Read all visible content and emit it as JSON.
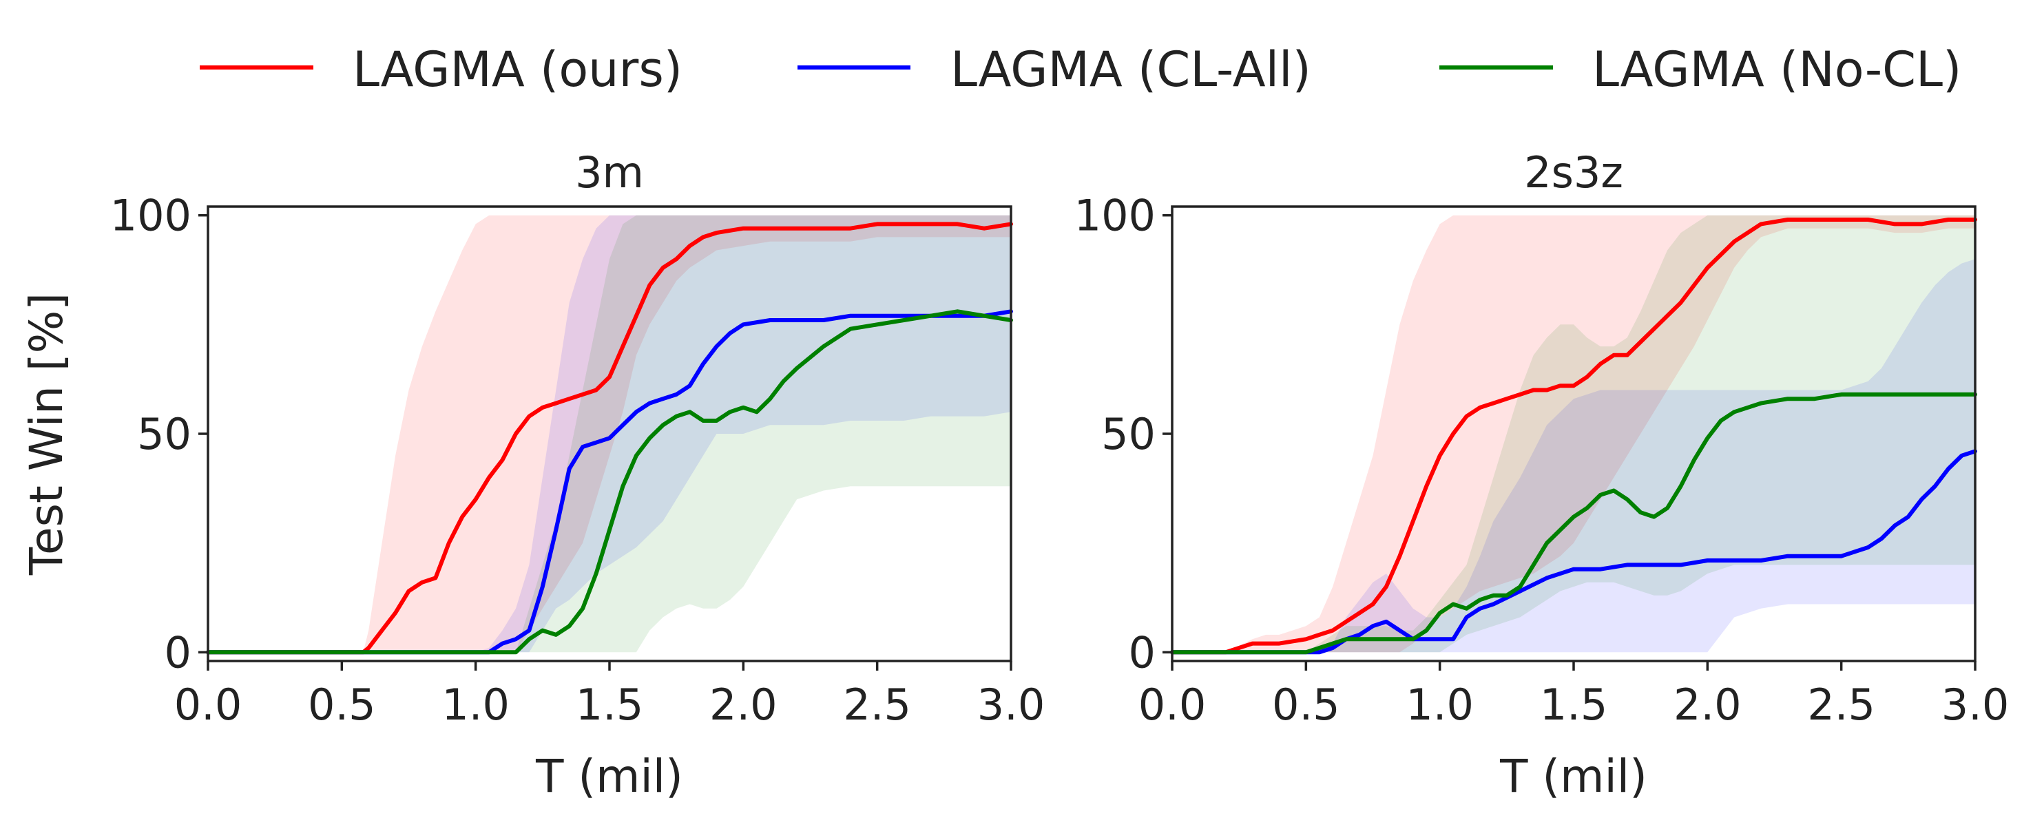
{
  "legend": [
    {
      "label": "LAGMA (ours)",
      "color": "#ff0000"
    },
    {
      "label": "LAGMA (CL-All)",
      "color": "#0000ff"
    },
    {
      "label": "LAGMA (No-CL)",
      "color": "#008000"
    }
  ],
  "chart_data": [
    {
      "type": "line",
      "title": "3m",
      "xlabel": "T (mil)",
      "ylabel": "Test Win [%]",
      "xlim": [
        0.0,
        3.0
      ],
      "ylim": [
        -2,
        102
      ],
      "xticks": [
        "0.0",
        "0.5",
        "1.0",
        "1.5",
        "2.0",
        "2.5",
        "3.0"
      ],
      "yticks": [
        "0",
        "50",
        "100"
      ],
      "grid": false,
      "series": [
        {
          "name": "LAGMA (ours)",
          "color": "#ff0000",
          "x": [
            0,
            0.3,
            0.58,
            0.6,
            0.65,
            0.7,
            0.75,
            0.8,
            0.85,
            0.9,
            0.95,
            1.0,
            1.05,
            1.1,
            1.15,
            1.2,
            1.25,
            1.3,
            1.35,
            1.4,
            1.45,
            1.5,
            1.55,
            1.6,
            1.65,
            1.7,
            1.75,
            1.8,
            1.85,
            1.9,
            2.0,
            2.1,
            2.2,
            2.3,
            2.4,
            2.5,
            2.6,
            2.7,
            2.8,
            2.9,
            3.0
          ],
          "y": [
            0,
            0,
            0,
            1,
            5,
            9,
            14,
            16,
            17,
            25,
            31,
            35,
            40,
            44,
            50,
            54,
            56,
            57,
            58,
            59,
            60,
            63,
            70,
            77,
            84,
            88,
            90,
            93,
            95,
            96,
            97,
            97,
            97,
            97,
            97,
            98,
            98,
            98,
            98,
            97,
            98
          ],
          "band_upper": [
            0,
            0,
            0,
            5,
            25,
            45,
            60,
            70,
            78,
            85,
            92,
            98,
            100,
            100,
            100,
            100,
            100,
            100,
            100,
            100,
            100,
            100,
            100,
            100,
            100,
            100,
            100,
            100,
            100,
            100,
            100,
            100,
            100,
            100,
            100,
            100,
            100,
            100,
            100,
            100,
            100
          ],
          "band_lower": [
            0,
            0,
            0,
            0,
            0,
            0,
            0,
            0,
            0,
            0,
            0,
            0,
            0,
            0,
            0,
            5,
            10,
            15,
            20,
            25,
            35,
            45,
            55,
            68,
            75,
            80,
            85,
            88,
            90,
            92,
            93,
            94,
            94,
            94,
            94,
            95,
            95,
            95,
            95,
            95,
            95
          ]
        },
        {
          "name": "LAGMA (CL-All)",
          "color": "#0000ff",
          "x": [
            0,
            0.5,
            1.0,
            1.05,
            1.1,
            1.15,
            1.2,
            1.25,
            1.3,
            1.35,
            1.4,
            1.45,
            1.5,
            1.55,
            1.6,
            1.65,
            1.7,
            1.75,
            1.8,
            1.85,
            1.9,
            1.95,
            2.0,
            2.1,
            2.2,
            2.3,
            2.4,
            2.5,
            2.6,
            2.7,
            2.8,
            2.9,
            3.0
          ],
          "y": [
            0,
            0,
            0,
            0,
            2,
            3,
            5,
            15,
            28,
            42,
            47,
            48,
            49,
            52,
            55,
            57,
            58,
            59,
            61,
            66,
            70,
            73,
            75,
            76,
            76,
            76,
            77,
            77,
            77,
            77,
            77,
            77,
            78
          ],
          "band_upper": [
            0,
            0,
            0,
            1,
            5,
            10,
            20,
            40,
            60,
            80,
            90,
            97,
            100,
            100,
            100,
            100,
            100,
            100,
            100,
            100,
            100,
            100,
            100,
            100,
            100,
            100,
            100,
            100,
            100,
            100,
            100,
            100,
            100
          ],
          "band_lower": [
            0,
            0,
            0,
            0,
            0,
            0,
            0,
            5,
            10,
            12,
            15,
            18,
            20,
            22,
            24,
            27,
            30,
            35,
            40,
            45,
            50,
            50,
            50,
            52,
            52,
            52,
            53,
            53,
            53,
            54,
            54,
            54,
            55
          ]
        },
        {
          "name": "LAGMA (No-CL)",
          "color": "#008000",
          "x": [
            0,
            0.5,
            1.0,
            1.15,
            1.2,
            1.25,
            1.3,
            1.35,
            1.4,
            1.45,
            1.5,
            1.55,
            1.6,
            1.65,
            1.7,
            1.75,
            1.8,
            1.85,
            1.9,
            1.95,
            2.0,
            2.05,
            2.1,
            2.15,
            2.2,
            2.3,
            2.4,
            2.5,
            2.6,
            2.7,
            2.8,
            2.9,
            3.0
          ],
          "y": [
            0,
            0,
            0,
            0,
            3,
            5,
            4,
            6,
            10,
            18,
            28,
            38,
            45,
            49,
            52,
            54,
            55,
            53,
            53,
            55,
            56,
            55,
            58,
            62,
            65,
            70,
            74,
            75,
            76,
            77,
            78,
            77,
            76
          ],
          "band_upper": [
            0,
            0,
            0,
            0,
            10,
            20,
            30,
            45,
            60,
            75,
            90,
            98,
            100,
            100,
            100,
            100,
            100,
            100,
            100,
            100,
            100,
            100,
            100,
            100,
            100,
            100,
            100,
            100,
            100,
            100,
            100,
            100,
            100
          ],
          "band_lower": [
            0,
            0,
            0,
            0,
            0,
            0,
            0,
            0,
            0,
            0,
            0,
            0,
            0,
            5,
            8,
            10,
            11,
            10,
            10,
            12,
            15,
            20,
            25,
            30,
            35,
            37,
            38,
            38,
            38,
            38,
            38,
            38,
            38
          ]
        }
      ]
    },
    {
      "type": "line",
      "title": "2s3z",
      "xlabel": "T (mil)",
      "ylabel": "",
      "xlim": [
        0.0,
        3.0
      ],
      "ylim": [
        -2,
        102
      ],
      "xticks": [
        "0.0",
        "0.5",
        "1.0",
        "1.5",
        "2.0",
        "2.5",
        "3.0"
      ],
      "yticks": [
        "0",
        "50",
        "100"
      ],
      "grid": false,
      "series": [
        {
          "name": "LAGMA (ours)",
          "color": "#ff0000",
          "x": [
            0,
            0.2,
            0.3,
            0.35,
            0.4,
            0.5,
            0.55,
            0.6,
            0.65,
            0.7,
            0.75,
            0.8,
            0.85,
            0.9,
            0.95,
            1.0,
            1.05,
            1.1,
            1.15,
            1.2,
            1.25,
            1.3,
            1.35,
            1.4,
            1.45,
            1.5,
            1.55,
            1.6,
            1.65,
            1.7,
            1.75,
            1.8,
            1.85,
            1.9,
            1.95,
            2.0,
            2.05,
            2.1,
            2.15,
            2.2,
            2.3,
            2.4,
            2.5,
            2.6,
            2.7,
            2.8,
            2.9,
            3.0
          ],
          "y": [
            0,
            0,
            2,
            2,
            2,
            3,
            4,
            5,
            7,
            9,
            11,
            15,
            22,
            30,
            38,
            45,
            50,
            54,
            56,
            57,
            58,
            59,
            60,
            60,
            61,
            61,
            63,
            66,
            68,
            68,
            71,
            74,
            77,
            80,
            84,
            88,
            91,
            94,
            96,
            98,
            99,
            99,
            99,
            99,
            98,
            98,
            99,
            99
          ],
          "band_upper": [
            0,
            0,
            3,
            4,
            4,
            6,
            8,
            15,
            25,
            35,
            45,
            60,
            75,
            85,
            92,
            98,
            100,
            100,
            100,
            100,
            100,
            100,
            100,
            100,
            100,
            100,
            100,
            100,
            100,
            100,
            100,
            100,
            100,
            100,
            100,
            100,
            100,
            100,
            100,
            100,
            100,
            100,
            100,
            100,
            100,
            100,
            100,
            100
          ],
          "band_lower": [
            0,
            0,
            0,
            0,
            0,
            0,
            0,
            0,
            0,
            0,
            0,
            0,
            0,
            2,
            5,
            8,
            10,
            12,
            14,
            15,
            16,
            17,
            18,
            20,
            22,
            25,
            30,
            35,
            40,
            45,
            50,
            55,
            60,
            65,
            70,
            76,
            82,
            88,
            92,
            95,
            97,
            97,
            97,
            97,
            96,
            96,
            97,
            97
          ]
        },
        {
          "name": "LAGMA (CL-All)",
          "color": "#0000ff",
          "x": [
            0,
            0.5,
            0.55,
            0.6,
            0.65,
            0.7,
            0.75,
            0.8,
            0.85,
            0.9,
            0.95,
            1.0,
            1.05,
            1.1,
            1.15,
            1.2,
            1.3,
            1.4,
            1.5,
            1.6,
            1.7,
            1.8,
            1.9,
            2.0,
            2.1,
            2.2,
            2.3,
            2.4,
            2.5,
            2.6,
            2.65,
            2.7,
            2.75,
            2.8,
            2.85,
            2.9,
            2.95,
            3.0
          ],
          "y": [
            0,
            0,
            0,
            1,
            3,
            4,
            6,
            7,
            5,
            3,
            3,
            3,
            3,
            8,
            10,
            11,
            14,
            17,
            19,
            19,
            20,
            20,
            20,
            21,
            21,
            21,
            22,
            22,
            22,
            24,
            26,
            29,
            31,
            35,
            38,
            42,
            45,
            46
          ],
          "band_upper": [
            0,
            0,
            0,
            2,
            8,
            12,
            16,
            18,
            14,
            10,
            8,
            8,
            10,
            15,
            22,
            30,
            40,
            52,
            58,
            60,
            60,
            60,
            60,
            60,
            60,
            60,
            60,
            60,
            60,
            62,
            65,
            70,
            75,
            80,
            84,
            87,
            89,
            90
          ],
          "band_lower": [
            0,
            0,
            0,
            0,
            0,
            0,
            0,
            0,
            0,
            0,
            0,
            0,
            0,
            0,
            0,
            0,
            0,
            0,
            0,
            0,
            0,
            0,
            0,
            0,
            8,
            10,
            11,
            11,
            11,
            11,
            11,
            11,
            11,
            11,
            11,
            11,
            11,
            11
          ]
        },
        {
          "name": "LAGMA (No-CL)",
          "color": "#008000",
          "x": [
            0,
            0.5,
            0.55,
            0.6,
            0.65,
            0.7,
            0.75,
            0.8,
            0.85,
            0.9,
            0.95,
            1.0,
            1.05,
            1.1,
            1.15,
            1.2,
            1.25,
            1.3,
            1.35,
            1.4,
            1.45,
            1.5,
            1.55,
            1.6,
            1.65,
            1.7,
            1.75,
            1.8,
            1.85,
            1.9,
            1.95,
            2.0,
            2.05,
            2.1,
            2.2,
            2.3,
            2.4,
            2.5,
            2.6,
            2.7,
            2.8,
            2.9,
            3.0
          ],
          "y": [
            0,
            0,
            1,
            2,
            3,
            3,
            3,
            3,
            3,
            3,
            5,
            9,
            11,
            10,
            12,
            13,
            13,
            15,
            20,
            25,
            28,
            31,
            33,
            36,
            37,
            35,
            32,
            31,
            33,
            38,
            44,
            49,
            53,
            55,
            57,
            58,
            58,
            59,
            59,
            59,
            59,
            59,
            59
          ],
          "band_upper": [
            0,
            0,
            2,
            4,
            6,
            6,
            6,
            6,
            5,
            5,
            8,
            12,
            16,
            20,
            30,
            40,
            50,
            60,
            68,
            72,
            75,
            75,
            72,
            70,
            70,
            72,
            78,
            85,
            92,
            96,
            98,
            100,
            100,
            100,
            100,
            100,
            100,
            100,
            100,
            100,
            100,
            100,
            100
          ],
          "band_lower": [
            0,
            0,
            0,
            0,
            0,
            0,
            0,
            0,
            0,
            0,
            0,
            0,
            2,
            4,
            5,
            6,
            7,
            8,
            10,
            12,
            14,
            15,
            16,
            16,
            16,
            15,
            14,
            13,
            13,
            14,
            16,
            18,
            19,
            20,
            20,
            20,
            20,
            20,
            20,
            20,
            20,
            20,
            20
          ]
        }
      ]
    }
  ]
}
